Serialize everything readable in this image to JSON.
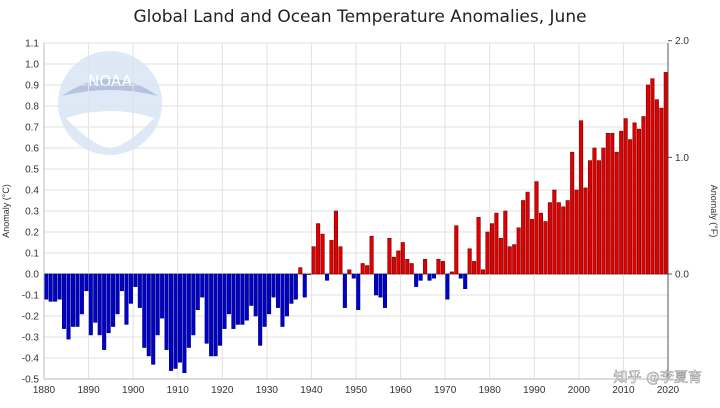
{
  "chart_data": {
    "type": "bar",
    "title": "Global Land and Ocean Temperature Anomalies, June",
    "ylabel_left": "Anomaly (°C)",
    "ylabel_right": "Anomaly (°F)",
    "xlabel": "",
    "x_start": 1880,
    "x_end": 2020,
    "ylim": [
      -0.5,
      1.1
    ],
    "yticks_left": [
      "1.1",
      "1.0",
      "0.9",
      "0.8",
      "0.7",
      "0.6",
      "0.5",
      "0.4",
      "0.3",
      "0.2",
      "0.1",
      "0.0",
      "-0.1",
      "-0.2",
      "-0.3",
      "-0.4",
      "-0.5"
    ],
    "yticks_right": [
      "2.0",
      "1.0",
      "0.0"
    ],
    "xticks": [
      "1880",
      "1890",
      "1900",
      "1910",
      "1920",
      "1930",
      "1940",
      "1950",
      "1960",
      "1970",
      "1980",
      "1990",
      "2000",
      "2010",
      "2020"
    ],
    "grid": true,
    "colors": {
      "positive": "#e00000",
      "negative": "#0000cc"
    },
    "years": [
      1880,
      1881,
      1882,
      1883,
      1884,
      1885,
      1886,
      1887,
      1888,
      1889,
      1890,
      1891,
      1892,
      1893,
      1894,
      1895,
      1896,
      1897,
      1898,
      1899,
      1900,
      1901,
      1902,
      1903,
      1904,
      1905,
      1906,
      1907,
      1908,
      1909,
      1910,
      1911,
      1912,
      1913,
      1914,
      1915,
      1916,
      1917,
      1918,
      1919,
      1920,
      1921,
      1922,
      1923,
      1924,
      1925,
      1926,
      1927,
      1928,
      1929,
      1930,
      1931,
      1932,
      1933,
      1934,
      1935,
      1936,
      1937,
      1938,
      1939,
      1940,
      1941,
      1942,
      1943,
      1944,
      1945,
      1946,
      1947,
      1948,
      1949,
      1950,
      1951,
      1952,
      1953,
      1954,
      1955,
      1956,
      1957,
      1958,
      1959,
      1960,
      1961,
      1962,
      1963,
      1964,
      1965,
      1966,
      1967,
      1968,
      1969,
      1970,
      1971,
      1972,
      1973,
      1974,
      1975,
      1976,
      1977,
      1978,
      1979,
      1980,
      1981,
      1982,
      1983,
      1984,
      1985,
      1986,
      1987,
      1988,
      1989,
      1990,
      1991,
      1992,
      1993,
      1994,
      1995,
      1996,
      1997,
      1998,
      1999,
      2000,
      2001,
      2002,
      2003,
      2004,
      2005,
      2006,
      2007,
      2008,
      2009,
      2010,
      2011,
      2012,
      2013,
      2014,
      2015,
      2016,
      2017,
      2018,
      2019
    ],
    "values": [
      -0.12,
      -0.13,
      -0.13,
      -0.12,
      -0.26,
      -0.31,
      -0.25,
      -0.25,
      -0.19,
      -0.08,
      -0.29,
      -0.23,
      -0.29,
      -0.36,
      -0.28,
      -0.25,
      -0.19,
      -0.08,
      -0.24,
      -0.14,
      -0.06,
      -0.16,
      -0.35,
      -0.39,
      -0.43,
      -0.29,
      -0.21,
      -0.36,
      -0.46,
      -0.45,
      -0.42,
      -0.47,
      -0.35,
      -0.29,
      -0.17,
      -0.11,
      -0.33,
      -0.39,
      -0.39,
      -0.34,
      -0.26,
      -0.19,
      -0.26,
      -0.24,
      -0.24,
      -0.22,
      -0.15,
      -0.2,
      -0.34,
      -0.25,
      -0.19,
      -0.11,
      -0.16,
      -0.25,
      -0.2,
      -0.14,
      -0.12,
      0.03,
      -0.11,
      0.0,
      0.13,
      0.24,
      0.19,
      -0.03,
      0.16,
      0.3,
      0.13,
      -0.16,
      0.02,
      -0.02,
      -0.17,
      0.05,
      0.04,
      0.18,
      -0.1,
      -0.11,
      -0.16,
      0.17,
      0.08,
      0.11,
      0.15,
      0.07,
      0.05,
      -0.06,
      -0.03,
      0.07,
      -0.03,
      -0.02,
      0.07,
      0.06,
      -0.12,
      0.01,
      0.23,
      -0.02,
      -0.07,
      0.12,
      0.06,
      0.27,
      0.02,
      0.2,
      0.24,
      0.29,
      0.17,
      0.3,
      0.13,
      0.14,
      0.22,
      0.35,
      0.39,
      0.26,
      0.44,
      0.29,
      0.25,
      0.34,
      0.4,
      0.34,
      0.32,
      0.35,
      0.58,
      0.4,
      0.73,
      0.41,
      0.54,
      0.6,
      0.54,
      0.6,
      0.67,
      0.67,
      0.58,
      0.68,
      0.74,
      0.64,
      0.72,
      0.69,
      0.75,
      0.9,
      0.93,
      0.83,
      0.79,
      0.96
    ]
  },
  "watermark": {
    "logo": "NOAA",
    "credit": "知乎 @李夏育"
  }
}
